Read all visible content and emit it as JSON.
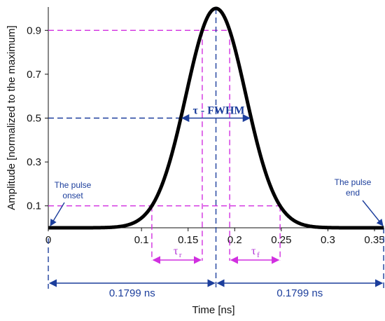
{
  "chart_data": {
    "type": "line",
    "xlabel": "Time [ns]",
    "ylabel": "Amplitude [normalized to the maximum]",
    "xlim": [
      0,
      0.36
    ],
    "ylim": [
      0,
      1.0
    ],
    "xticks": [
      0,
      0.1,
      0.15,
      0.2,
      0.25,
      0.3,
      0.35
    ],
    "xtick_labels": [
      "0",
      "0.1",
      "0.15",
      "0.2",
      "0.25",
      "0.3",
      "0.35"
    ],
    "yticks": [
      0.1,
      0.3,
      0.5,
      0.7,
      0.9
    ],
    "ytick_labels": [
      "0.1",
      "0.3",
      "0.5",
      "0.7",
      "0.9"
    ],
    "series": [
      {
        "peak_time": 0.1799,
        "fwhm": 0.0755,
        "color": "#000000"
      }
    ],
    "annotations": {
      "fwhm_label": "τ - FWHM",
      "rise_label": "τ",
      "rise_sub": "r",
      "fall_label": "τ",
      "fall_sub": "f",
      "onset_line1": "The pulse",
      "onset_line2": "onset",
      "end_line1": "The pulse",
      "end_line2": "end",
      "left_duration": "0.1799 ns",
      "right_duration": "0.1799 ns",
      "onset_time": 0,
      "end_time": 0.3598
    },
    "colors": {
      "blue": "#1c3e9c",
      "magenta": "#d12fe0",
      "curve": "#000000"
    }
  }
}
